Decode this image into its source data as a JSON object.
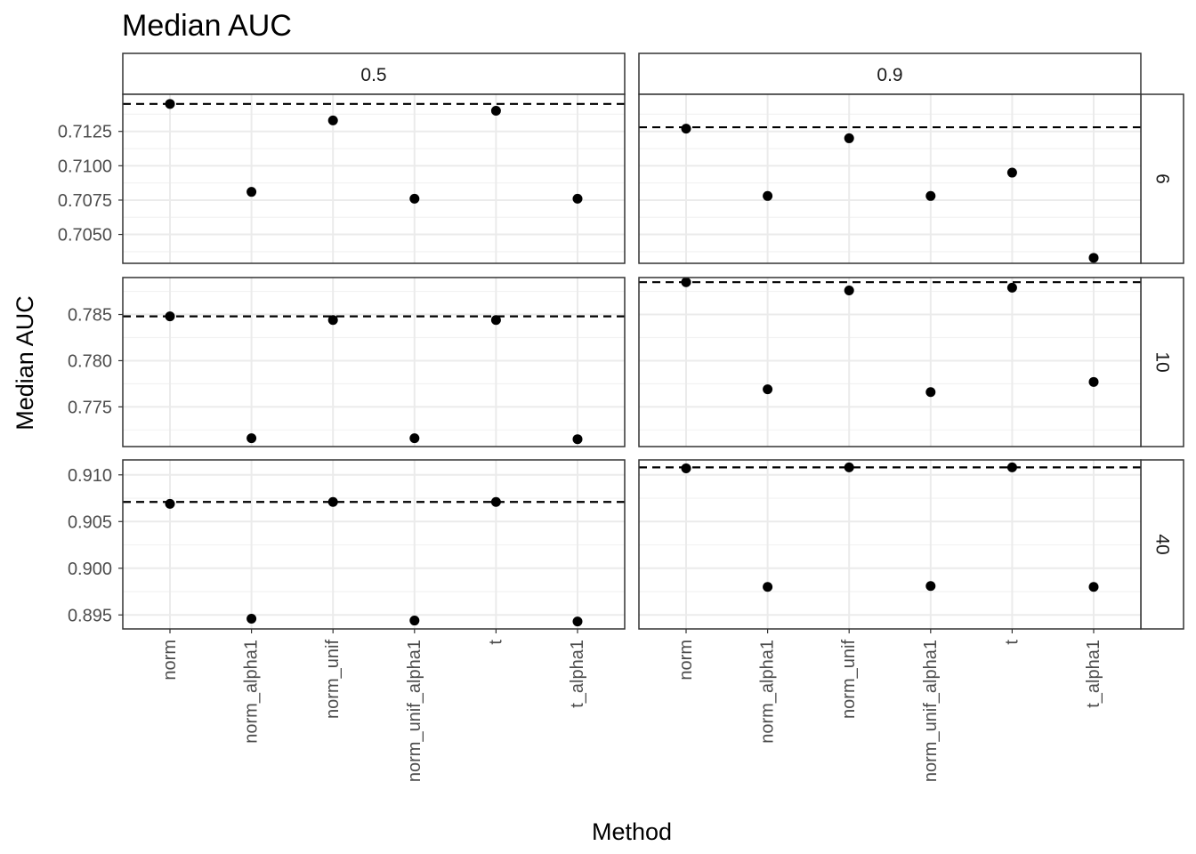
{
  "chart_data": {
    "type": "scatter",
    "title": "Median AUC",
    "xlabel": "Method",
    "ylabel": "Median AUC",
    "categories": [
      "norm",
      "norm_alpha1",
      "norm_unif",
      "norm_unif_alpha1",
      "t",
      "t_alpha1"
    ],
    "column_facets": [
      "0.5",
      "0.9"
    ],
    "row_facets": [
      "6",
      "10",
      "40"
    ],
    "grid": true,
    "reference_line": "dashed horizontal line per panel",
    "rows": [
      {
        "facet": "6",
        "ylim": [
          0.7029,
          0.7152
        ],
        "yticks": [
          0.705,
          0.7075,
          0.71,
          0.7125
        ],
        "ytick_labels": [
          "0.7050",
          "0.7075",
          "0.7100",
          "0.7125"
        ],
        "panels": [
          {
            "column": "0.5",
            "values": [
              0.7145,
              0.7081,
              0.7133,
              0.7076,
              0.714,
              0.7076
            ],
            "reference": 0.7145
          },
          {
            "column": "0.9",
            "values": [
              0.7127,
              0.7078,
              0.712,
              0.7078,
              0.7095,
              0.7033
            ],
            "reference": 0.7128
          }
        ]
      },
      {
        "facet": "10",
        "ylim": [
          0.7707,
          0.789
        ],
        "yticks": [
          0.775,
          0.78,
          0.785
        ],
        "ytick_labels": [
          "0.775",
          "0.780",
          "0.785"
        ],
        "panels": [
          {
            "column": "0.5",
            "values": [
              0.7848,
              0.7716,
              0.7844,
              0.7716,
              0.7844,
              0.7715
            ],
            "reference": 0.7848
          },
          {
            "column": "0.9",
            "values": [
              0.7885,
              0.7769,
              0.7876,
              0.7766,
              0.7879,
              0.7777
            ],
            "reference": 0.7885
          }
        ]
      },
      {
        "facet": "40",
        "ylim": [
          0.8935,
          0.9116
        ],
        "yticks": [
          0.895,
          0.9,
          0.905,
          0.91
        ],
        "ytick_labels": [
          "0.895",
          "0.900",
          "0.905",
          "0.910"
        ],
        "panels": [
          {
            "column": "0.5",
            "values": [
              0.9069,
              0.8946,
              0.9071,
              0.8944,
              0.9071,
              0.8943
            ],
            "reference": 0.9071
          },
          {
            "column": "0.9",
            "values": [
              0.9107,
              0.898,
              0.9108,
              0.8981,
              0.9108,
              0.898
            ],
            "reference": 0.9108
          }
        ]
      }
    ]
  }
}
